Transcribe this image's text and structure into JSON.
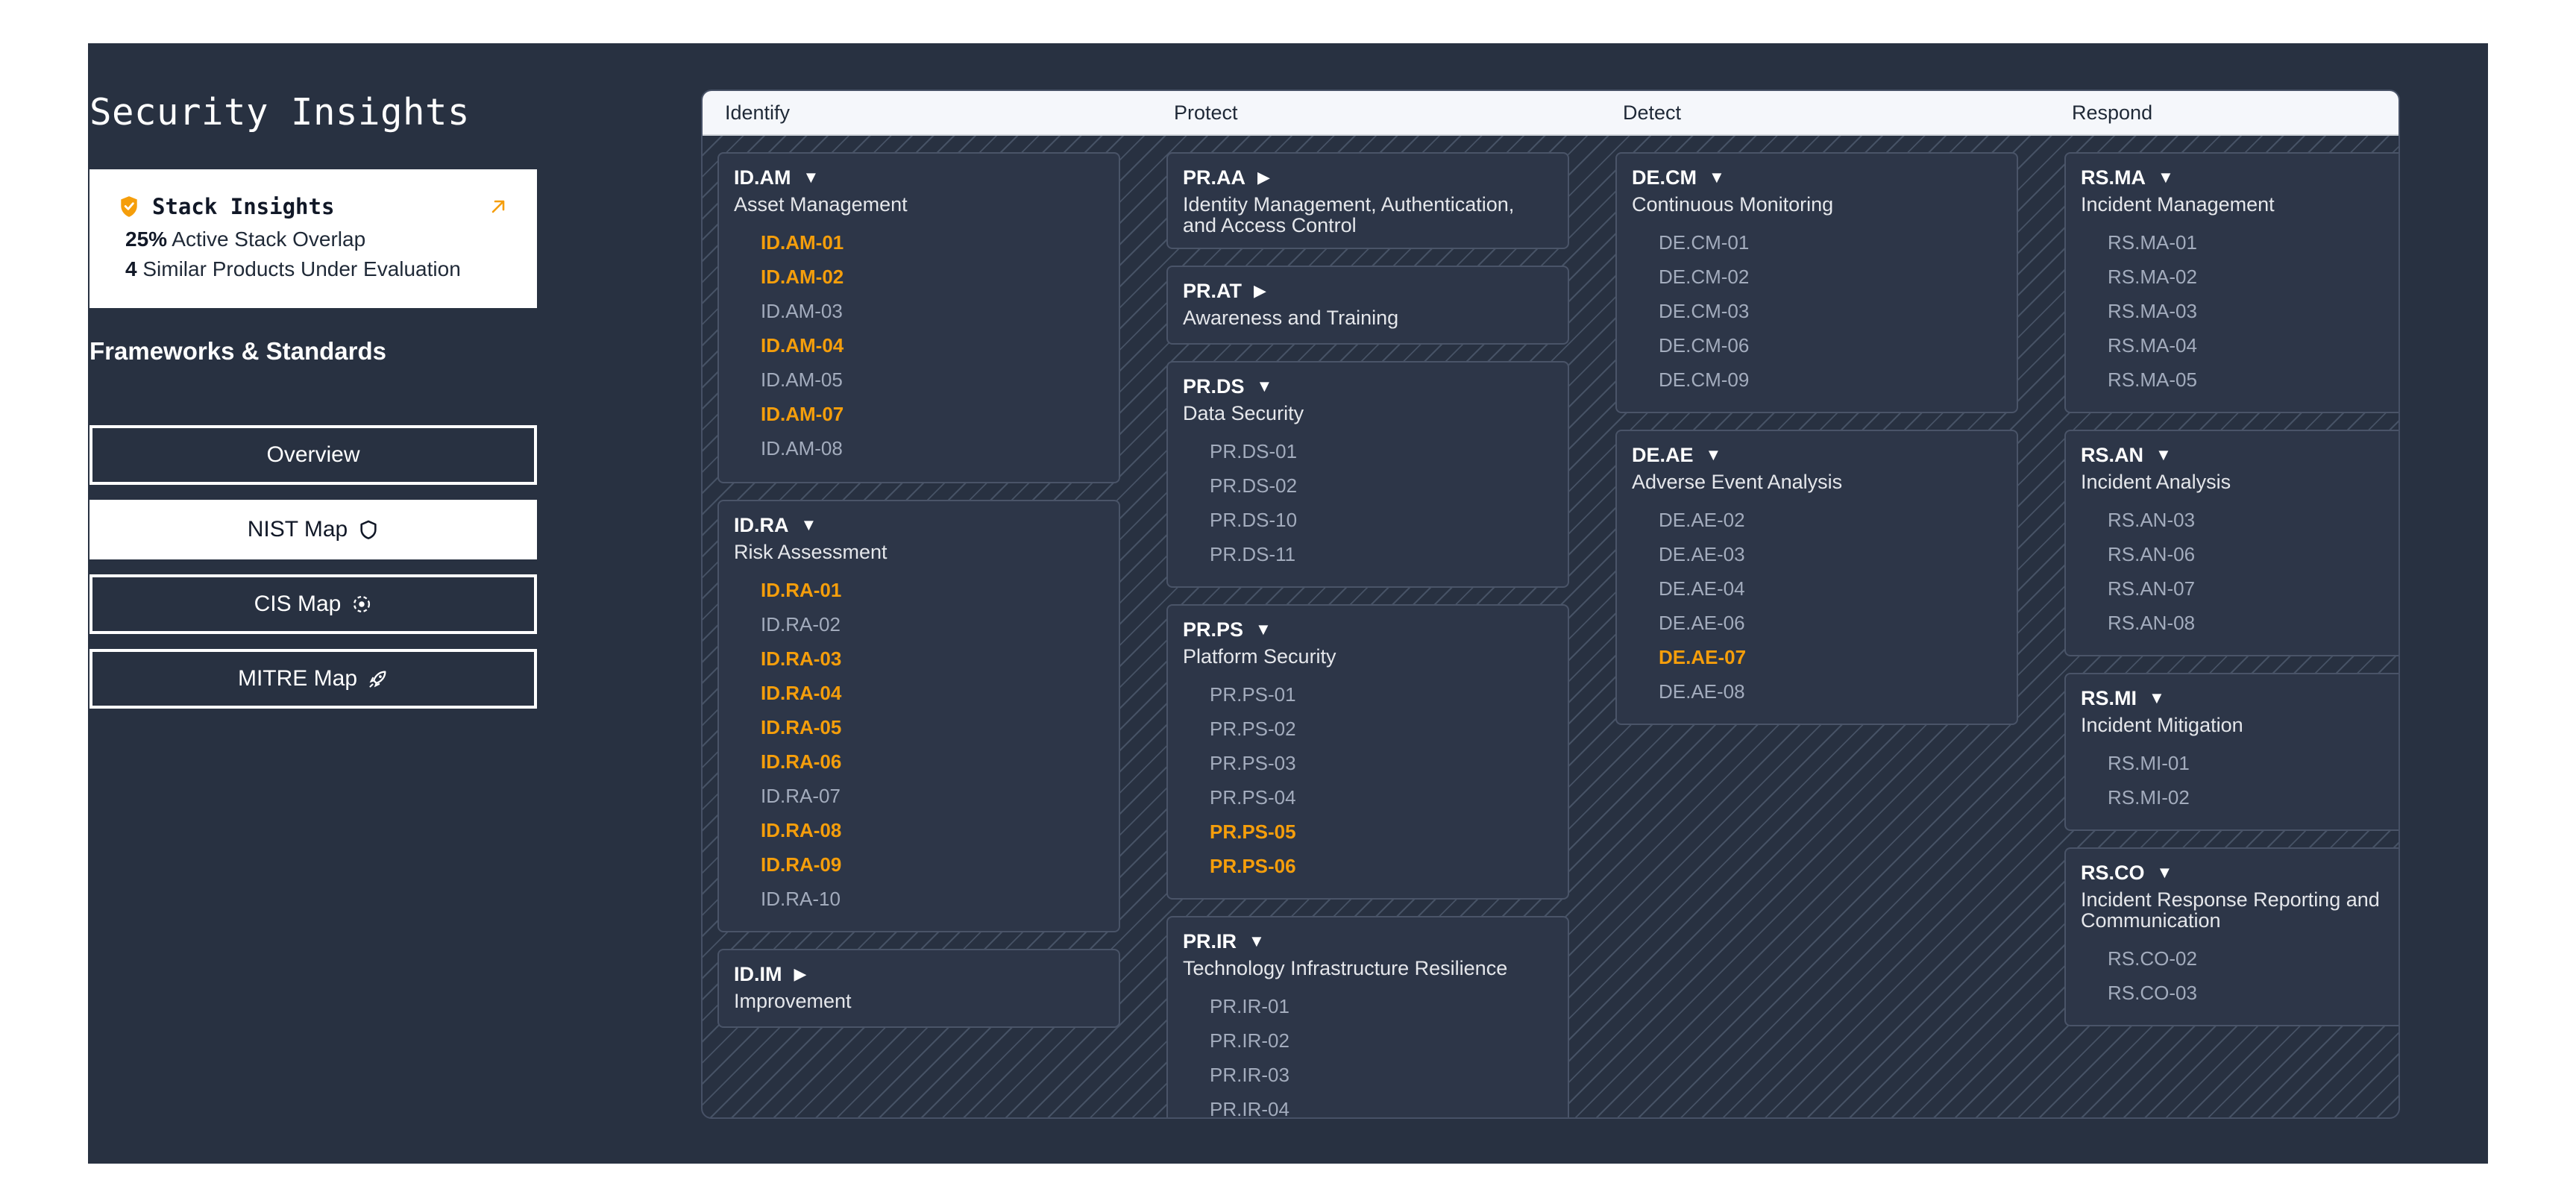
{
  "page": {
    "title": "Security Insights"
  },
  "stack_insights": {
    "title": "Stack Insights",
    "overlap_value": "25%",
    "overlap_label": "Active Stack Overlap",
    "similar_value": "4",
    "similar_label": "Similar Products Under Evaluation",
    "accent_color": "#f59e0b"
  },
  "frameworks": {
    "title": "Frameworks & Standards",
    "buttons": [
      {
        "label": "Overview",
        "icon": "",
        "active": false
      },
      {
        "label": "NIST Map",
        "icon": "shield-icon",
        "active": true
      },
      {
        "label": "CIS Map",
        "icon": "target-icon",
        "active": false
      },
      {
        "label": "MITRE Map",
        "icon": "rocket-icon",
        "active": false
      }
    ]
  },
  "matrix": {
    "highlight_color": "#f59e0b",
    "columns": [
      {
        "label": "Identify"
      },
      {
        "label": "Protect"
      },
      {
        "label": "Detect"
      },
      {
        "label": "Respond"
      }
    ],
    "cards": [
      {
        "code": "ID.AM",
        "caret": "▼",
        "name": "Asset Management",
        "items": [
          {
            "id": "ID.AM-01",
            "hl": true
          },
          {
            "id": "ID.AM-02",
            "hl": true
          },
          {
            "id": "ID.AM-03",
            "hl": false
          },
          {
            "id": "ID.AM-04",
            "hl": true
          },
          {
            "id": "ID.AM-05",
            "hl": false
          },
          {
            "id": "ID.AM-07",
            "hl": true
          },
          {
            "id": "ID.AM-08",
            "hl": false
          }
        ]
      },
      {
        "code": "ID.RA",
        "caret": "▼",
        "name": "Risk Assessment",
        "items": [
          {
            "id": "ID.RA-01",
            "hl": true
          },
          {
            "id": "ID.RA-02",
            "hl": false
          },
          {
            "id": "ID.RA-03",
            "hl": true
          },
          {
            "id": "ID.RA-04",
            "hl": true
          },
          {
            "id": "ID.RA-05",
            "hl": true
          },
          {
            "id": "ID.RA-06",
            "hl": true
          },
          {
            "id": "ID.RA-07",
            "hl": false
          },
          {
            "id": "ID.RA-08",
            "hl": true
          },
          {
            "id": "ID.RA-09",
            "hl": true
          },
          {
            "id": "ID.RA-10",
            "hl": false
          }
        ]
      },
      {
        "code": "ID.IM",
        "caret": "▶",
        "name": "Improvement",
        "items": []
      },
      {
        "code": "PR.AA",
        "caret": "▶",
        "name": "Identity Management, Authentication, and Access Control",
        "items": []
      },
      {
        "code": "PR.AT",
        "caret": "▶",
        "name": "Awareness and Training",
        "items": []
      },
      {
        "code": "PR.DS",
        "caret": "▼",
        "name": "Data Security",
        "items": [
          {
            "id": "PR.DS-01",
            "hl": false
          },
          {
            "id": "PR.DS-02",
            "hl": false
          },
          {
            "id": "PR.DS-10",
            "hl": false
          },
          {
            "id": "PR.DS-11",
            "hl": false
          }
        ]
      },
      {
        "code": "PR.PS",
        "caret": "▼",
        "name": "Platform Security",
        "items": [
          {
            "id": "PR.PS-01",
            "hl": false
          },
          {
            "id": "PR.PS-02",
            "hl": false
          },
          {
            "id": "PR.PS-03",
            "hl": false
          },
          {
            "id": "PR.PS-04",
            "hl": false
          },
          {
            "id": "PR.PS-05",
            "hl": true
          },
          {
            "id": "PR.PS-06",
            "hl": true
          }
        ]
      },
      {
        "code": "PR.IR",
        "caret": "▼",
        "name": "Technology Infrastructure Resilience",
        "items": [
          {
            "id": "PR.IR-01",
            "hl": false
          },
          {
            "id": "PR.IR-02",
            "hl": false
          },
          {
            "id": "PR.IR-03",
            "hl": false
          },
          {
            "id": "PR.IR-04",
            "hl": false
          }
        ]
      },
      {
        "code": "DE.CM",
        "caret": "▼",
        "name": "Continuous Monitoring",
        "items": [
          {
            "id": "DE.CM-01",
            "hl": false
          },
          {
            "id": "DE.CM-02",
            "hl": false
          },
          {
            "id": "DE.CM-03",
            "hl": false
          },
          {
            "id": "DE.CM-06",
            "hl": false
          },
          {
            "id": "DE.CM-09",
            "hl": false
          }
        ]
      },
      {
        "code": "DE.AE",
        "caret": "▼",
        "name": "Adverse Event Analysis",
        "items": [
          {
            "id": "DE.AE-02",
            "hl": false
          },
          {
            "id": "DE.AE-03",
            "hl": false
          },
          {
            "id": "DE.AE-04",
            "hl": false
          },
          {
            "id": "DE.AE-06",
            "hl": false
          },
          {
            "id": "DE.AE-07",
            "hl": true
          },
          {
            "id": "DE.AE-08",
            "hl": false
          }
        ]
      },
      {
        "code": "RS.MA",
        "caret": "▼",
        "name": "Incident Management",
        "items": [
          {
            "id": "RS.MA-01",
            "hl": false
          },
          {
            "id": "RS.MA-02",
            "hl": false
          },
          {
            "id": "RS.MA-03",
            "hl": false
          },
          {
            "id": "RS.MA-04",
            "hl": false
          },
          {
            "id": "RS.MA-05",
            "hl": false
          }
        ]
      },
      {
        "code": "RS.AN",
        "caret": "▼",
        "name": "Incident Analysis",
        "items": [
          {
            "id": "RS.AN-03",
            "hl": false
          },
          {
            "id": "RS.AN-06",
            "hl": false
          },
          {
            "id": "RS.AN-07",
            "hl": false
          },
          {
            "id": "RS.AN-08",
            "hl": false
          }
        ]
      },
      {
        "code": "RS.MI",
        "caret": "▼",
        "name": "Incident Mitigation",
        "items": [
          {
            "id": "RS.MI-01",
            "hl": false
          },
          {
            "id": "RS.MI-02",
            "hl": false
          }
        ]
      },
      {
        "code": "RS.CO",
        "caret": "▼",
        "name": "Incident Response Reporting and Communication",
        "items": [
          {
            "id": "RS.CO-02",
            "hl": false
          },
          {
            "id": "RS.CO-03",
            "hl": false
          }
        ]
      }
    ]
  }
}
